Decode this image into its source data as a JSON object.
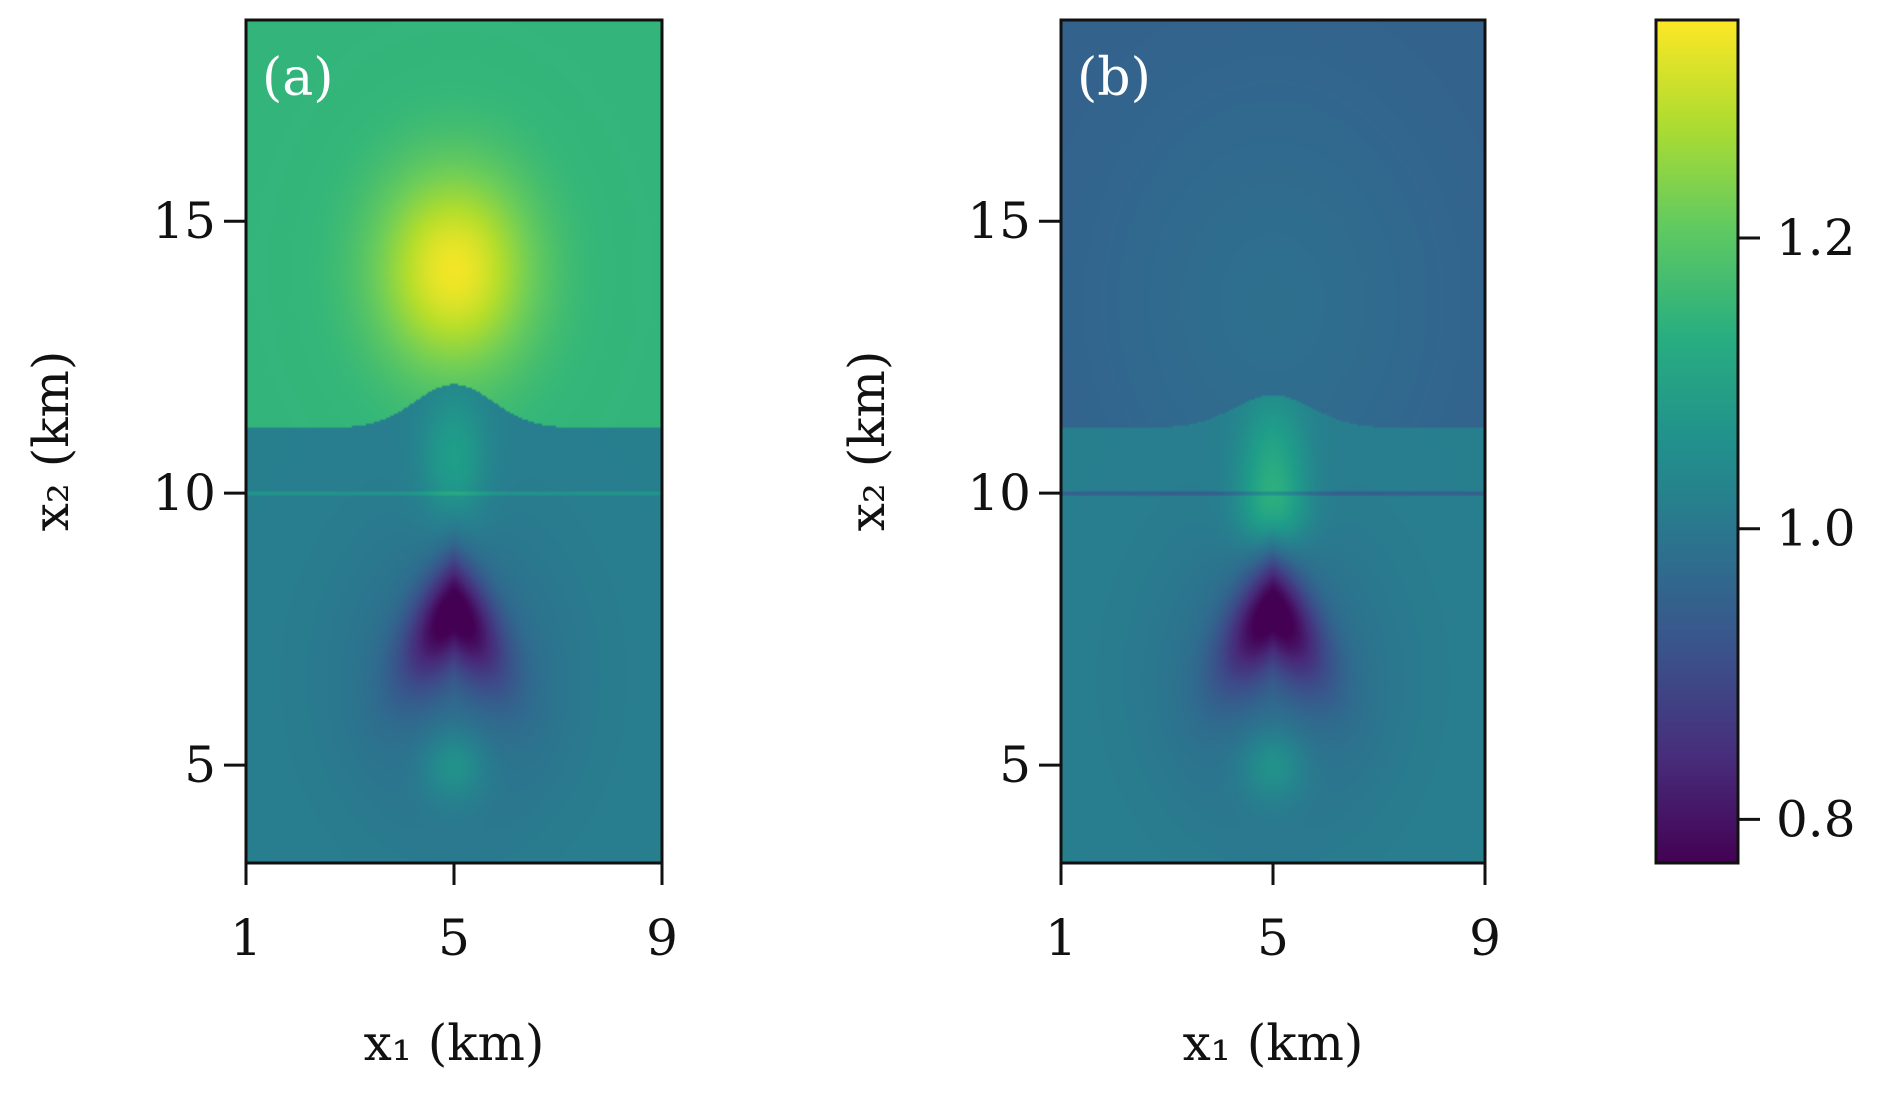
{
  "chart_data": [
    {
      "type": "heatmap",
      "panel_label": "(a)",
      "xlabel": "x₁ (km)",
      "ylabel": "x₂ (km)",
      "xlim": [
        1,
        9
      ],
      "ylim": [
        3.2,
        18.7
      ],
      "xticks": [
        1,
        5,
        9
      ],
      "yticks": [
        5,
        10,
        15
      ],
      "colormap": "viridis",
      "features": {
        "interface_x2": 11.2,
        "bump_peak_x2": 12.0,
        "bump_center_x1": 5,
        "horizontal_line_x2": 10,
        "upper_background": 1.15,
        "lower_background": 1.02,
        "anomaly_max": {
          "x1": 5,
          "x2": 14.1,
          "value": 1.34
        },
        "anomaly_min": {
          "x1": 5,
          "x2": 7.5,
          "value": 0.78
        },
        "secondary_max": {
          "x1": 5,
          "x2": 5.0,
          "value": 1.1
        }
      }
    },
    {
      "type": "heatmap",
      "panel_label": "(b)",
      "xlabel": "x₁ (km)",
      "ylabel": "x₂ (km)",
      "xlim": [
        1,
        9
      ],
      "ylim": [
        3.2,
        18.7
      ],
      "xticks": [
        1,
        5,
        9
      ],
      "yticks": [
        5,
        10,
        15
      ],
      "colormap": "viridis",
      "features": {
        "interface_x2": 11.2,
        "bump_peak_x2": 11.8,
        "bump_center_x1": 5,
        "horizontal_line_x2": 10,
        "upper_background": 0.95,
        "lower_background": 1.02,
        "anomaly_max": {
          "x1": 5,
          "x2": 10.5,
          "value": 1.12
        },
        "anomaly_min": {
          "x1": 5,
          "x2": 7.5,
          "value": 0.78
        },
        "secondary_max": {
          "x1": 5,
          "x2": 5.0,
          "value": 1.1
        }
      }
    }
  ],
  "colorbar": {
    "vmin": 0.77,
    "vmax": 1.35,
    "ticks": [
      0.8,
      1.0,
      1.2
    ],
    "tick_labels": [
      "0.8",
      "1.0",
      "1.2"
    ]
  }
}
